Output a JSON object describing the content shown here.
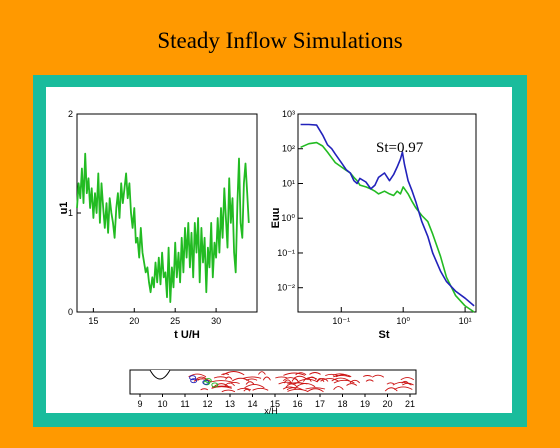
{
  "slide": {
    "title": "Steady Inflow Simulations"
  },
  "colors": {
    "background": "#FF9900",
    "frame": "#1ABC9C",
    "panel": "#FFFFFF",
    "green": "#22BB22",
    "blue": "#2222BB",
    "red": "#CC1111"
  },
  "chart_data": [
    {
      "type": "line",
      "xlabel": "t U/H",
      "ylabel": "u1",
      "xlim": [
        13,
        35
      ],
      "ylim": [
        0,
        2
      ],
      "x_ticks": [
        "15",
        "20",
        "25",
        "30"
      ],
      "y_ticks": [
        "0",
        "1",
        "2"
      ],
      "series": [
        {
          "color": "#22BB22",
          "x": [
            13.0,
            13.2,
            13.4,
            13.6,
            13.8,
            14.0,
            14.2,
            14.4,
            14.6,
            14.8,
            15.0,
            15.2,
            15.4,
            15.6,
            15.8,
            16.0,
            16.2,
            16.4,
            16.6,
            16.8,
            17.0,
            17.2,
            17.4,
            17.6,
            17.8,
            18.0,
            18.2,
            18.4,
            18.6,
            18.8,
            19.0,
            19.2,
            19.4,
            19.6,
            19.8,
            20.0,
            20.2,
            20.4,
            20.6,
            20.8,
            21.0,
            21.2,
            21.4,
            21.6,
            21.8,
            22.0,
            22.2,
            22.4,
            22.6,
            22.8,
            23.0,
            23.2,
            23.4,
            23.6,
            23.8,
            24.0,
            24.2,
            24.4,
            24.6,
            24.8,
            25.0,
            25.2,
            25.4,
            25.6,
            25.8,
            26.0,
            26.2,
            26.4,
            26.6,
            26.8,
            27.0,
            27.2,
            27.4,
            27.6,
            27.8,
            28.0,
            28.2,
            28.4,
            28.6,
            28.8,
            29.0,
            29.2,
            29.4,
            29.6,
            29.8,
            30.0,
            30.2,
            30.4,
            30.6,
            30.8,
            31.0,
            31.2,
            31.4,
            31.6,
            31.8,
            32.0,
            32.2,
            32.4,
            32.6,
            32.8,
            33.0,
            33.2,
            33.4,
            33.6,
            33.8,
            34.0
          ],
          "y": [
            1.05,
            1.3,
            1.15,
            1.45,
            1.1,
            1.6,
            1.2,
            1.35,
            1.05,
            1.25,
            0.95,
            1.2,
            1.0,
            1.4,
            0.9,
            1.3,
            1.05,
            0.85,
            1.1,
            0.8,
            1.15,
            1.0,
            0.9,
            0.75,
            1.05,
            1.2,
            0.95,
            1.3,
            1.1,
            1.25,
            1.4,
            1.15,
            1.3,
            1.0,
            0.85,
            1.05,
            0.7,
            0.75,
            0.55,
            0.85,
            0.6,
            0.5,
            0.4,
            0.45,
            0.3,
            0.2,
            0.35,
            0.25,
            0.5,
            0.3,
            0.55,
            0.28,
            0.6,
            0.35,
            0.4,
            0.15,
            0.65,
            0.1,
            0.45,
            0.25,
            0.7,
            0.35,
            0.6,
            0.3,
            0.75,
            0.4,
            0.85,
            0.55,
            0.9,
            0.45,
            0.8,
            0.35,
            0.9,
            0.6,
            0.95,
            0.3,
            0.85,
            0.5,
            0.75,
            0.2,
            0.65,
            0.45,
            0.9,
            0.35,
            0.7,
            0.55,
            0.95,
            0.6,
            1.05,
            0.75,
            1.25,
            0.95,
            0.65,
            1.35,
            0.9,
            1.15,
            0.6,
            0.4,
            1.1,
            1.55,
            0.9,
            0.75,
            1.3,
            1.5,
            1.2,
            0.9
          ]
        }
      ]
    },
    {
      "type": "line",
      "xlabel": "St",
      "ylabel": "Euu",
      "xscale": "log",
      "yscale": "log",
      "xlim": [
        0.02,
        15
      ],
      "ylim": [
        0.002,
        1000
      ],
      "x_ticks": [
        "10⁻¹",
        "10⁰",
        "10¹"
      ],
      "y_ticks": [
        "10³",
        "10²",
        "10¹",
        "10⁰",
        "10⁻¹",
        "10⁻²"
      ],
      "annotation": "St=0.97",
      "series": [
        {
          "color": "#2222BB",
          "x": [
            0.022,
            0.03,
            0.04,
            0.05,
            0.06,
            0.07,
            0.08,
            0.1,
            0.12,
            0.14,
            0.16,
            0.18,
            0.2,
            0.25,
            0.3,
            0.35,
            0.4,
            0.5,
            0.6,
            0.7,
            0.8,
            0.9,
            0.97,
            1.05,
            1.2,
            1.4,
            1.6,
            2.0,
            2.5,
            3.0,
            4.0,
            5.0,
            7.0,
            10.0,
            14.0
          ],
          "y": [
            500,
            500,
            480,
            250,
            130,
            100,
            70,
            40,
            25,
            20,
            12,
            10,
            14,
            11,
            7,
            9,
            15,
            20,
            12,
            18,
            30,
            50,
            80,
            35,
            12,
            6,
            3,
            0.8,
            0.3,
            0.1,
            0.03,
            0.015,
            0.008,
            0.005,
            0.003
          ]
        },
        {
          "color": "#22BB22",
          "x": [
            0.022,
            0.03,
            0.04,
            0.05,
            0.06,
            0.07,
            0.08,
            0.1,
            0.12,
            0.14,
            0.16,
            0.18,
            0.2,
            0.25,
            0.3,
            0.35,
            0.4,
            0.5,
            0.6,
            0.7,
            0.8,
            0.9,
            1.0,
            1.2,
            1.4,
            1.6,
            2.0,
            2.5,
            3.0,
            4.0,
            5.0,
            7.0,
            10.0,
            14.0
          ],
          "y": [
            110,
            140,
            150,
            120,
            80,
            55,
            40,
            30,
            24,
            20,
            15,
            12,
            9,
            8,
            7,
            6,
            5,
            6,
            5,
            4.5,
            6,
            5,
            8,
            5,
            3,
            2,
            1.2,
            0.8,
            0.35,
            0.08,
            0.02,
            0.006,
            0.003,
            0.002
          ]
        }
      ]
    },
    {
      "type": "line",
      "xlabel": "x/H",
      "x_ticks": [
        "9",
        "10",
        "11",
        "12",
        "13",
        "14",
        "15",
        "16",
        "17",
        "18",
        "19",
        "20",
        "21"
      ]
    }
  ]
}
